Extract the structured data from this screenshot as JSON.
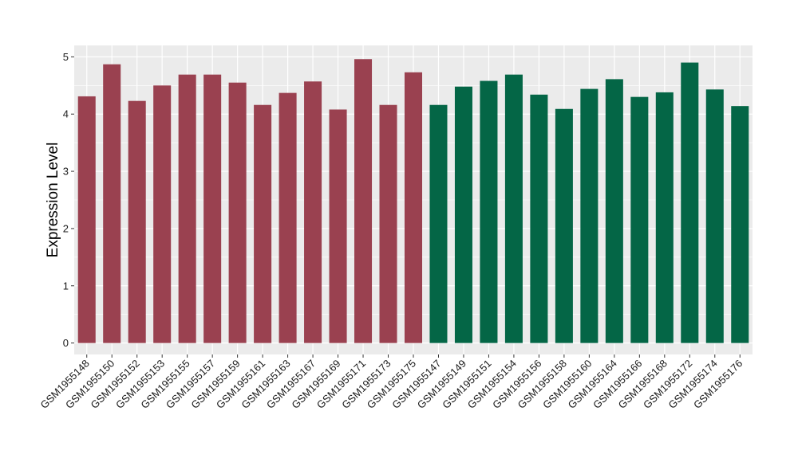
{
  "chart_data": {
    "type": "bar",
    "title": "",
    "xlabel": "",
    "ylabel": "Expression Level",
    "ylim": [
      -0.2,
      5.2
    ],
    "yticks": [
      0,
      1,
      2,
      3,
      4,
      5
    ],
    "grid": true,
    "legend": "none",
    "categories": [
      "GSM1955148",
      "GSM1955150",
      "GSM1955152",
      "GSM1955153",
      "GSM1955155",
      "GSM1955157",
      "GSM1955159",
      "GSM1955161",
      "GSM1955163",
      "GSM1955167",
      "GSM1955169",
      "GSM1955171",
      "GSM1955173",
      "GSM1955175",
      "GSM1955147",
      "GSM1955149",
      "GSM1955151",
      "GSM1955154",
      "GSM1955156",
      "GSM1955158",
      "GSM1955160",
      "GSM1955164",
      "GSM1955166",
      "GSM1955168",
      "GSM1955172",
      "GSM1955174",
      "GSM1955176"
    ],
    "values": [
      4.31,
      4.87,
      4.23,
      4.5,
      4.69,
      4.69,
      4.55,
      4.16,
      4.37,
      4.57,
      4.08,
      4.96,
      4.16,
      4.73,
      4.16,
      4.48,
      4.58,
      4.69,
      4.34,
      4.09,
      4.44,
      4.61,
      4.3,
      4.38,
      4.9,
      4.43,
      4.14
    ],
    "groups": [
      0,
      0,
      0,
      0,
      0,
      0,
      0,
      0,
      0,
      0,
      0,
      0,
      0,
      0,
      1,
      1,
      1,
      1,
      1,
      1,
      1,
      1,
      1,
      1,
      1,
      1,
      1
    ],
    "colors": {
      "group0": "#9a4150",
      "group1": "#046646",
      "panel": "#ebebeb",
      "grid": "#ffffff"
    }
  }
}
